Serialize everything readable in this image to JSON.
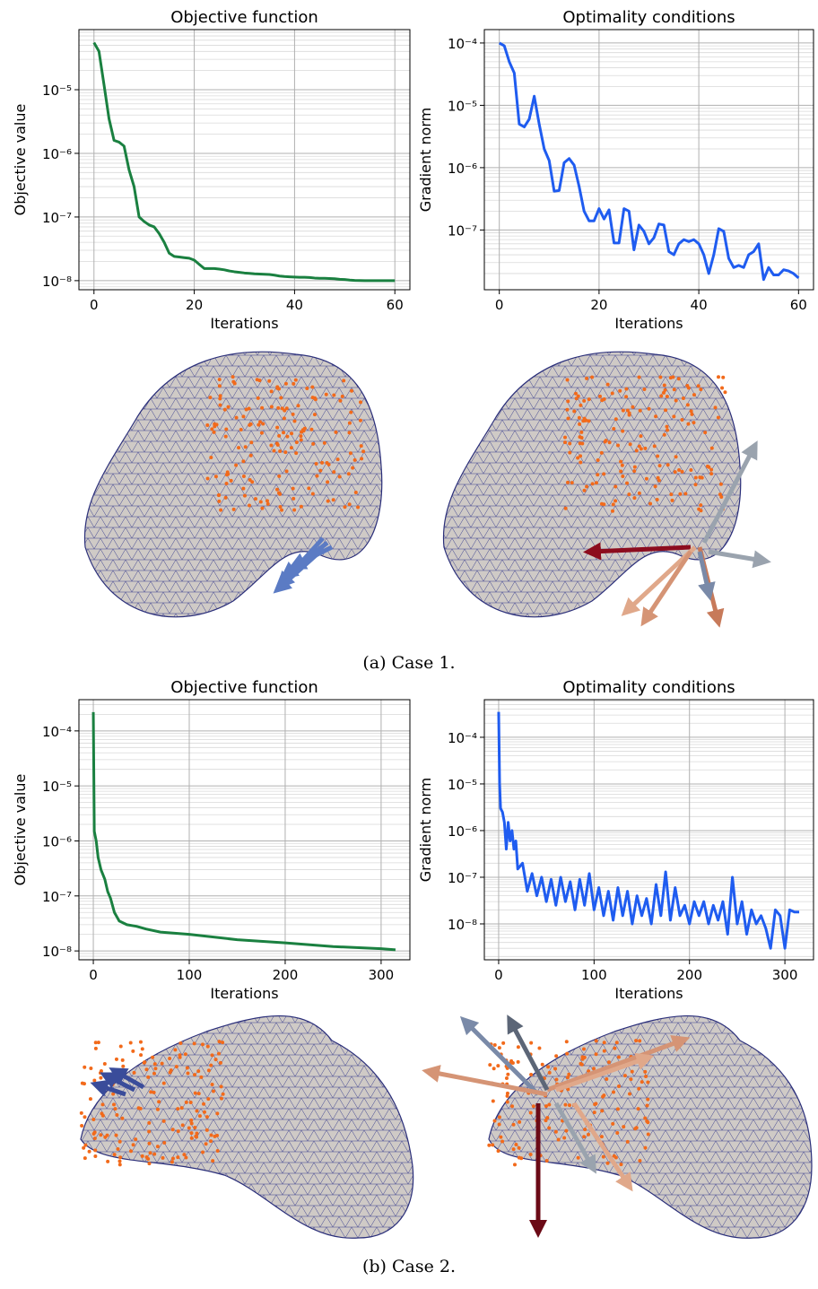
{
  "chart_data": [
    {
      "type": "line",
      "title": "Objective function",
      "xlabel": "Iterations",
      "ylabel": "Objective value",
      "color": "#1a8040",
      "log_y": true,
      "grid": true,
      "minor_grid": true,
      "xlim": [
        -3,
        63
      ],
      "ylim": [
        7.2e-09,
        8.8e-05
      ],
      "xticks": [
        0,
        20,
        40,
        60
      ],
      "yticks": [
        {
          "value": 1e-08,
          "label": "10⁻⁸"
        },
        {
          "value": 1e-07,
          "label": "10⁻⁷"
        },
        {
          "value": 1e-06,
          "label": "10⁻⁶"
        },
        {
          "value": 1e-05,
          "label": "10⁻⁵"
        }
      ],
      "x": [
        0,
        1,
        2,
        3,
        4,
        5,
        6,
        7,
        8,
        9,
        10,
        11,
        12,
        13,
        14,
        15,
        16,
        17,
        18,
        19,
        20,
        21,
        22,
        23,
        24,
        25,
        26,
        27,
        28,
        29,
        30,
        31,
        32,
        33,
        34,
        35,
        36,
        37,
        38,
        39,
        40,
        41,
        42,
        43,
        44,
        45,
        46,
        47,
        48,
        49,
        50,
        51,
        52,
        53,
        54,
        55,
        56,
        57,
        58,
        59,
        60
      ],
      "values": [
        5.5e-05,
        4e-05,
        1.2e-05,
        3.5e-06,
        1.6e-06,
        1.5e-06,
        1.3e-06,
        5.5e-07,
        3e-07,
        1e-07,
        8.5e-08,
        7.5e-08,
        7e-08,
        5.5e-08,
        4e-08,
        2.7e-08,
        2.4e-08,
        2.35e-08,
        2.3e-08,
        2.25e-08,
        2.1e-08,
        1.8e-08,
        1.55e-08,
        1.55e-08,
        1.55e-08,
        1.52e-08,
        1.48e-08,
        1.42e-08,
        1.38e-08,
        1.35e-08,
        1.32e-08,
        1.3e-08,
        1.28e-08,
        1.27e-08,
        1.26e-08,
        1.25e-08,
        1.22e-08,
        1.18e-08,
        1.16e-08,
        1.15e-08,
        1.14e-08,
        1.13e-08,
        1.13e-08,
        1.12e-08,
        1.1e-08,
        1.09e-08,
        1.09e-08,
        1.08e-08,
        1.07e-08,
        1.05e-08,
        1.04e-08,
        1.02e-08,
        1.01e-08,
        1.005e-08,
        1e-08,
        1e-08,
        1e-08,
        1e-08,
        1e-08,
        1e-08,
        1e-08
      ]
    },
    {
      "type": "line",
      "title": "Optimality conditions",
      "xlabel": "Iterations",
      "ylabel": "Gradient norm",
      "color": "#1f5cf0",
      "log_y": true,
      "grid": true,
      "minor_grid": true,
      "xlim": [
        -3,
        63
      ],
      "ylim": [
        1.1e-08,
        0.000164
      ],
      "xticks": [
        0,
        20,
        40,
        60
      ],
      "yticks": [
        {
          "value": 1e-07,
          "label": "10⁻⁷"
        },
        {
          "value": 1e-06,
          "label": "10⁻⁶"
        },
        {
          "value": 1e-05,
          "label": "10⁻⁵"
        },
        {
          "value": 0.0001,
          "label": "10⁻⁴"
        }
      ],
      "x": [
        0,
        1,
        2,
        3,
        4,
        5,
        6,
        7,
        8,
        9,
        10,
        11,
        12,
        13,
        14,
        15,
        16,
        17,
        18,
        19,
        20,
        21,
        22,
        23,
        24,
        25,
        26,
        27,
        28,
        29,
        30,
        31,
        32,
        33,
        34,
        35,
        36,
        37,
        38,
        39,
        40,
        41,
        42,
        43,
        44,
        45,
        46,
        47,
        48,
        49,
        50,
        51,
        52,
        53,
        54,
        55,
        56,
        57,
        58,
        59,
        60
      ],
      "values": [
        0.0001,
        9e-05,
        5e-05,
        3.3e-05,
        5e-06,
        4.5e-06,
        6e-06,
        1.4e-05,
        5e-06,
        2e-06,
        1.3e-06,
        4.2e-07,
        4.3e-07,
        1.2e-06,
        1.4e-06,
        1.1e-06,
        5e-07,
        2e-07,
        1.4e-07,
        1.4e-07,
        2.2e-07,
        1.5e-07,
        2.1e-07,
        6.2e-08,
        6.2e-08,
        2.2e-07,
        2e-07,
        4.8e-08,
        1.2e-07,
        9.5e-08,
        6e-08,
        7.5e-08,
        1.25e-07,
        1.2e-07,
        4.5e-08,
        4e-08,
        6e-08,
        7e-08,
        6.5e-08,
        7e-08,
        6e-08,
        4e-08,
        2e-08,
        4e-08,
        1.05e-07,
        9.5e-08,
        3.5e-08,
        2.5e-08,
        2.7e-08,
        2.5e-08,
        4e-08,
        4.5e-08,
        6e-08,
        1.6e-08,
        2.5e-08,
        1.9e-08,
        1.9e-08,
        2.3e-08,
        2.2e-08,
        2e-08,
        1.7e-08
      ]
    },
    {
      "type": "line",
      "title": "Objective function",
      "xlabel": "Iterations",
      "ylabel": "Objective value",
      "color": "#1a8040",
      "log_y": true,
      "grid": true,
      "minor_grid": true,
      "xlim": [
        -15,
        330
      ],
      "ylim": [
        6.9e-09,
        0.00037
      ],
      "xticks": [
        0,
        100,
        200,
        300
      ],
      "yticks": [
        {
          "value": 1e-08,
          "label": "10⁻⁸"
        },
        {
          "value": 1e-07,
          "label": "10⁻⁷"
        },
        {
          "value": 1e-06,
          "label": "10⁻⁶"
        },
        {
          "value": 1e-05,
          "label": "10⁻⁵"
        },
        {
          "value": 0.0001,
          "label": "10⁻⁴"
        }
      ],
      "x": [
        0,
        1,
        3,
        5,
        8,
        12,
        15,
        18,
        22,
        27,
        35,
        45,
        55,
        70,
        100,
        150,
        200,
        250,
        300,
        315
      ],
      "values": [
        0.00022,
        1.5e-06,
        1e-06,
        5e-07,
        3e-07,
        2e-07,
        1.2e-07,
        9e-08,
        5e-08,
        3.5e-08,
        3e-08,
        2.8e-08,
        2.5e-08,
        2.2e-08,
        2e-08,
        1.6e-08,
        1.4e-08,
        1.2e-08,
        1.1e-08,
        1.05e-08
      ]
    },
    {
      "type": "line",
      "title": "Optimality conditions",
      "xlabel": "Iterations",
      "ylabel": "Gradient norm",
      "color": "#1f5cf0",
      "log_y": true,
      "grid": true,
      "minor_grid": true,
      "xlim": [
        -15,
        330
      ],
      "ylim": [
        1.7e-09,
        0.00064
      ],
      "xticks": [
        0,
        100,
        200,
        300
      ],
      "yticks": [
        {
          "value": 1e-08,
          "label": "10⁻⁸"
        },
        {
          "value": 1e-07,
          "label": "10⁻⁷"
        },
        {
          "value": 1e-06,
          "label": "10⁻⁶"
        },
        {
          "value": 1e-05,
          "label": "10⁻⁵"
        },
        {
          "value": 0.0001,
          "label": "10⁻⁴"
        }
      ],
      "x": [
        0,
        1,
        2,
        4,
        6,
        8,
        10,
        12,
        14,
        16,
        18,
        20,
        25,
        30,
        35,
        40,
        45,
        50,
        55,
        60,
        65,
        70,
        75,
        80,
        85,
        90,
        95,
        100,
        105,
        110,
        115,
        120,
        125,
        130,
        135,
        140,
        145,
        150,
        155,
        160,
        165,
        170,
        175,
        180,
        185,
        190,
        195,
        200,
        205,
        210,
        215,
        220,
        225,
        230,
        235,
        240,
        245,
        250,
        255,
        260,
        265,
        270,
        275,
        280,
        285,
        290,
        295,
        300,
        305,
        310,
        315
      ],
      "values": [
        0.00035,
        1e-05,
        3e-06,
        2.5e-06,
        1.5e-06,
        4e-07,
        1.5e-06,
        6e-07,
        1e-06,
        4e-07,
        6e-07,
        1.5e-07,
        2e-07,
        5e-08,
        1.2e-07,
        4e-08,
        1e-07,
        3e-08,
        9e-08,
        2.5e-08,
        1e-07,
        3e-08,
        8e-08,
        2e-08,
        9e-08,
        2.5e-08,
        1.2e-07,
        2e-08,
        6e-08,
        1.5e-08,
        5e-08,
        1.2e-08,
        6e-08,
        1.5e-08,
        5e-08,
        1e-08,
        4e-08,
        1.5e-08,
        3.5e-08,
        1e-08,
        7e-08,
        1.5e-08,
        1.3e-07,
        1.2e-08,
        6e-08,
        1.5e-08,
        2.5e-08,
        1e-08,
        3e-08,
        1.5e-08,
        3e-08,
        1e-08,
        2.5e-08,
        1.2e-08,
        3e-08,
        6e-09,
        1e-07,
        1e-08,
        3e-08,
        6e-09,
        2e-08,
        1e-08,
        1.5e-08,
        8e-09,
        3e-09,
        2e-08,
        1.5e-08,
        3e-09,
        2e-08,
        1.8e-08,
        1.8e-08
      ]
    }
  ],
  "captions": [
    "(a) Case 1.",
    "(b) Case 2."
  ]
}
